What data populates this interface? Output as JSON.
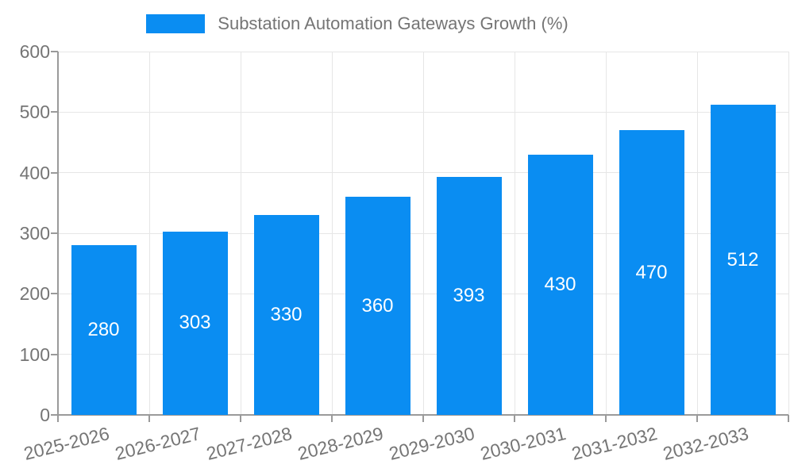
{
  "chart": {
    "legend": {
      "label": "Substation Automation Gateways Growth (%)"
    }
  },
  "chart_data": {
    "type": "bar",
    "title": "Substation Automation Gateways Growth (%)",
    "legend_position": "top-center",
    "categories": [
      "2025-2026",
      "2026-2027",
      "2027-2028",
      "2028-2029",
      "2029-2030",
      "2030-2031",
      "2031-2032",
      "2032-2033"
    ],
    "values": [
      280,
      303,
      330,
      360,
      393,
      430,
      470,
      512
    ],
    "value_labels": [
      "280",
      "303",
      "330",
      "360",
      "393",
      "430",
      "470",
      "512"
    ],
    "xlabel": "",
    "ylabel": "",
    "ylim": [
      0,
      600
    ],
    "yticks": [
      0,
      100,
      200,
      300,
      400,
      500,
      600
    ],
    "grid": true,
    "xtick_rotation_deg": -14,
    "colors": {
      "bar": "#0a8df2",
      "grid": "#e6e6e6",
      "axis": "#9a9a9a",
      "tick_text": "#757575",
      "value_label": "#ffffff",
      "background": "#ffffff"
    }
  }
}
